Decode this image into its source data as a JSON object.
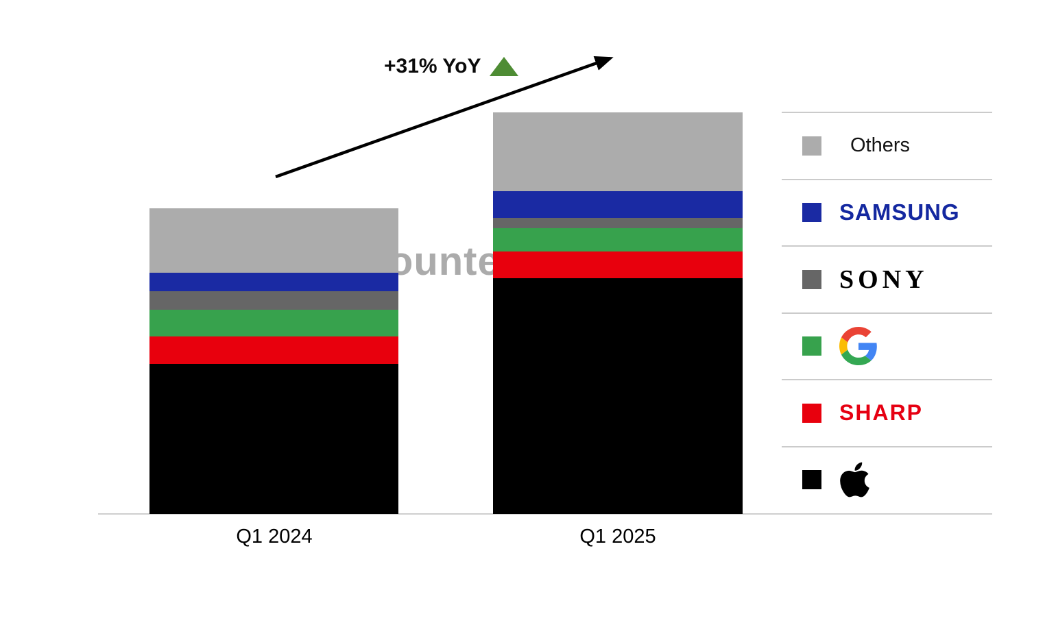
{
  "annotation": {
    "growth_label": "+31% YoY",
    "triangle_color": "#4E8C34",
    "arrow_color": "#000000"
  },
  "watermark": {
    "text": "Counterpoint",
    "color": "#ABABAB"
  },
  "x_axis": {
    "labels": [
      "Q1 2024",
      "Q1 2025"
    ]
  },
  "chart_data": {
    "type": "bar",
    "stacked": true,
    "orientation": "vertical",
    "categories": [
      "Q1 2024",
      "Q1 2025"
    ],
    "series": [
      {
        "name": "Apple",
        "color": "#000000",
        "values": [
          49.1,
          77.1
        ]
      },
      {
        "name": "Sharp",
        "color": "#E8000D",
        "values": [
          9.0,
          8.8
        ]
      },
      {
        "name": "Google",
        "color": "#37A24D",
        "values": [
          8.7,
          7.6
        ]
      },
      {
        "name": "Sony",
        "color": "#666666",
        "values": [
          6.1,
          3.4
        ]
      },
      {
        "name": "Samsung",
        "color": "#1A2AA3",
        "values": [
          6.1,
          8.7
        ]
      },
      {
        "name": "Others",
        "color": "#ACACAC",
        "values": [
          21.0,
          25.8
        ]
      }
    ],
    "totals": [
      100.0,
      131.4
    ],
    "units": "indexed volume (Q1 2024 total = 100)",
    "yoy_growth": "+31%",
    "ylim": [
      0,
      131.4
    ],
    "gridlines": false,
    "legend_position": "right",
    "annotations": [
      "+31% YoY"
    ]
  },
  "legend": {
    "items": [
      {
        "label": "Others",
        "swatch_color": "#ACACAC",
        "logo": "plain-text",
        "logo_color": "#141414"
      },
      {
        "label": "SAMSUNG",
        "swatch_color": "#1A2AA3",
        "logo": "samsung-wordmark",
        "logo_color": "#1428A0"
      },
      {
        "label": "SONY",
        "swatch_color": "#666666",
        "logo": "sony-wordmark",
        "logo_color": "#000000"
      },
      {
        "label": "Google",
        "swatch_color": "#37A24D",
        "logo": "google-g",
        "g_colors": {
          "red": "#EA4335",
          "blue": "#4285F4",
          "yellow": "#FBBC05",
          "green": "#34A853"
        }
      },
      {
        "label": "SHARP",
        "swatch_color": "#E8000D",
        "logo": "sharp-wordmark",
        "logo_color": "#E60012"
      },
      {
        "label": "Apple",
        "swatch_color": "#000000",
        "logo": "apple-glyph",
        "logo_color": "#000000"
      }
    ]
  }
}
